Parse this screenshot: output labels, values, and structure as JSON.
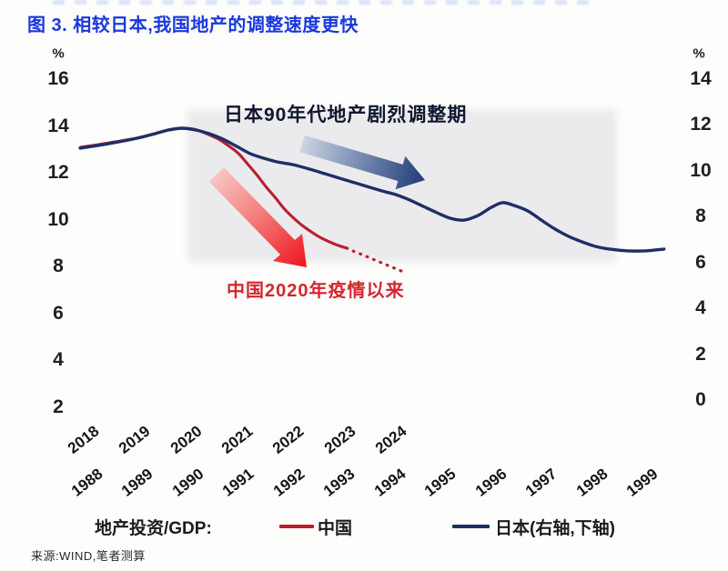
{
  "page": {
    "title": "图 3. 相较日本,我国地产的调整速度更快",
    "source": "来源:WIND,笔者测算"
  },
  "legend": {
    "prefix": "地产投资/GDP:",
    "china_label": "中国",
    "japan_label": "日本(右轴,下轴)"
  },
  "annotations": {
    "japan": "日本90年代地产剧烈调整期",
    "china": "中国2020年疫情以来"
  },
  "colors": {
    "title": "#1a38db",
    "china_line": "#b91f2e",
    "japan_line": "#1e2f66",
    "china_annotation": "#d4262e",
    "japan_annotation": "#10162e",
    "red_arrow_start": "#f7c5c3",
    "red_arrow_end": "#ee1c24",
    "blue_arrow_start": "#ccd3e2",
    "blue_arrow_end": "#27407b",
    "highlight_band": "#e4e4e8"
  },
  "chart_data": {
    "type": "line",
    "title": "图 3. 相较日本,我国地产的调整速度更快",
    "ylabel_left": "%",
    "ylabel_right": "%",
    "grid": false,
    "legend_position": "bottom",
    "left_axis": {
      "unit": "%",
      "range": [
        2,
        16
      ],
      "ticks": [
        16,
        14,
        12,
        10,
        8,
        6,
        4,
        2
      ]
    },
    "right_axis": {
      "unit": "%",
      "range": [
        0,
        14
      ],
      "ticks": [
        14,
        12,
        10,
        8,
        6,
        4,
        2,
        0
      ]
    },
    "x_axis_top": {
      "series": "中国",
      "labels": [
        "2018",
        "2019",
        "2020",
        "2021",
        "2022",
        "2023",
        "2024"
      ]
    },
    "x_axis_bottom": {
      "series": "日本",
      "labels": [
        "1988",
        "1989",
        "1990",
        "1991",
        "1992",
        "1993",
        "1994",
        "1995",
        "1996",
        "1997",
        "1998",
        "1999"
      ]
    },
    "series": [
      {
        "name": "中国",
        "metric": "地产投资/GDP",
        "axis": "left",
        "x_axis": "top",
        "style": "solid, dotted projection after 2023",
        "yearly_values": {
          "2018": 13.1,
          "2019": 13.5,
          "2020": 13.9,
          "2021": 12.8,
          "2022": 10.1,
          "2023": 8.8,
          "2024": 7.8
        },
        "points": [
          [
            2017.88,
            13.09
          ],
          [
            2018.44,
            13.28
          ],
          [
            2018.98,
            13.48
          ],
          [
            2019.33,
            13.67
          ],
          [
            2019.6,
            13.83
          ],
          [
            2019.87,
            13.9
          ],
          [
            2020.08,
            13.87
          ],
          [
            2020.26,
            13.75
          ],
          [
            2020.43,
            13.59
          ],
          [
            2020.61,
            13.4
          ],
          [
            2020.79,
            13.13
          ],
          [
            2020.97,
            12.82
          ],
          [
            2021.14,
            12.39
          ],
          [
            2021.32,
            11.93
          ],
          [
            2021.5,
            11.42
          ],
          [
            2021.68,
            10.96
          ],
          [
            2021.85,
            10.49
          ],
          [
            2022.03,
            10.1
          ],
          [
            2022.21,
            9.76
          ],
          [
            2022.39,
            9.48
          ],
          [
            2022.56,
            9.25
          ],
          [
            2022.74,
            9.06
          ],
          [
            2022.92,
            8.9
          ],
          [
            2023.08,
            8.79
          ]
        ],
        "dotted_points": [
          [
            2023.08,
            8.79
          ],
          [
            2023.2,
            8.67
          ],
          [
            2023.42,
            8.48
          ],
          [
            2023.63,
            8.28
          ],
          [
            2023.84,
            8.09
          ],
          [
            2024.05,
            7.9
          ],
          [
            2024.18,
            7.78
          ]
        ]
      },
      {
        "name": "日本(右轴,下轴)",
        "metric": "地产投资/GDP",
        "axis": "right",
        "x_axis": "bottom",
        "style": "solid",
        "yearly_values": {
          "1988": 11.1,
          "1989": 11.4,
          "1990": 11.8,
          "1991": 10.8,
          "1992": 10.3,
          "1993": 9.6,
          "1994": 9.0,
          "1995": 7.9,
          "1996": 8.5,
          "1997": 7.7,
          "1998": 6.7,
          "1999": 6.5
        },
        "points": [
          [
            1987.84,
            10.99
          ],
          [
            1988.41,
            11.19
          ],
          [
            1988.96,
            11.42
          ],
          [
            1989.32,
            11.62
          ],
          [
            1989.59,
            11.78
          ],
          [
            1989.86,
            11.86
          ],
          [
            1990.13,
            11.78
          ],
          [
            1990.4,
            11.62
          ],
          [
            1990.67,
            11.38
          ],
          [
            1990.94,
            11.07
          ],
          [
            1991.21,
            10.75
          ],
          [
            1991.48,
            10.55
          ],
          [
            1991.75,
            10.39
          ],
          [
            1992.06,
            10.27
          ],
          [
            1992.38,
            10.08
          ],
          [
            1992.74,
            9.84
          ],
          [
            1993.1,
            9.6
          ],
          [
            1993.46,
            9.36
          ],
          [
            1993.83,
            9.12
          ],
          [
            1994.1,
            8.96
          ],
          [
            1994.37,
            8.73
          ],
          [
            1994.64,
            8.45
          ],
          [
            1994.91,
            8.17
          ],
          [
            1995.18,
            7.93
          ],
          [
            1995.45,
            7.85
          ],
          [
            1995.72,
            8.05
          ],
          [
            1995.99,
            8.41
          ],
          [
            1996.21,
            8.61
          ],
          [
            1996.44,
            8.49
          ],
          [
            1996.71,
            8.25
          ],
          [
            1996.98,
            7.85
          ],
          [
            1997.25,
            7.46
          ],
          [
            1997.52,
            7.14
          ],
          [
            1997.79,
            6.9
          ],
          [
            1998.06,
            6.7
          ],
          [
            1998.33,
            6.59
          ],
          [
            1998.69,
            6.51
          ],
          [
            1999.05,
            6.51
          ],
          [
            1999.41,
            6.59
          ]
        ]
      }
    ]
  }
}
